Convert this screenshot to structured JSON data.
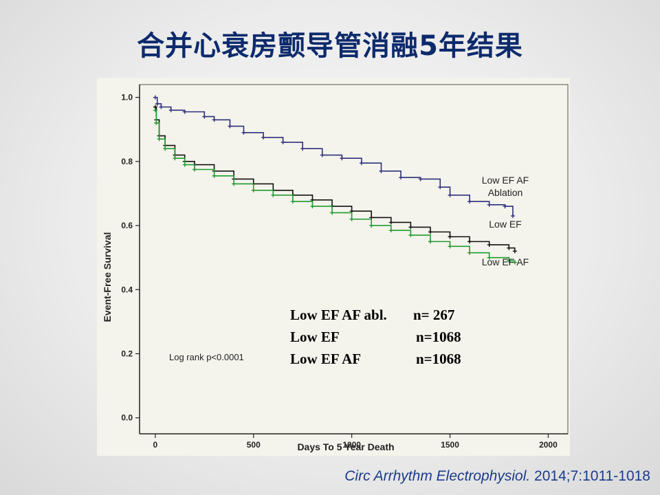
{
  "slide": {
    "title": "合并心衰房颤导管消融5年结果",
    "citation_journal": "Circ Arrhythm Electrophysiol.",
    "citation_ref": " 2014;7:1011-1018"
  },
  "colors": {
    "title": "#0d2a6c",
    "ablation": "#2c2f7a",
    "low_ef": "#111111",
    "low_ef_af": "#1f9a2e"
  },
  "chart_data": {
    "type": "line",
    "xlabel": "Days To 5 Year Death",
    "ylabel": "Event-Free Survival",
    "xlim": [
      -80,
      2100
    ],
    "ylim": [
      -0.05,
      1.04
    ],
    "x_ticks": [
      0,
      500,
      1000,
      1500,
      2000
    ],
    "y_ticks": [
      0.0,
      0.2,
      0.4,
      0.6,
      0.8,
      1.0
    ],
    "x_tick_labels": [
      "0",
      "500",
      "1000",
      "1500",
      "2000"
    ],
    "y_tick_labels": [
      "0.0",
      "0.2",
      "0.4",
      "0.6",
      "0.8",
      "1.0"
    ],
    "annotation": "Log rank p<0.0001",
    "legend": [
      {
        "label": "Low EF AF abl.",
        "n": "n= 267"
      },
      {
        "label": "Low EF",
        "n": "n=1068"
      },
      {
        "label": "Low EF AF",
        "n": "n=1068"
      }
    ],
    "series": [
      {
        "name": "Low EF AF Ablation",
        "label_lines": [
          "Low EF AF",
          "Ablation"
        ],
        "color": "#2c2f7a",
        "x": [
          0,
          10,
          30,
          80,
          150,
          250,
          300,
          380,
          450,
          550,
          650,
          750,
          850,
          950,
          1050,
          1150,
          1250,
          1350,
          1450,
          1500,
          1600,
          1700,
          1780,
          1820
        ],
        "y": [
          1.0,
          0.98,
          0.97,
          0.96,
          0.955,
          0.94,
          0.93,
          0.91,
          0.89,
          0.875,
          0.86,
          0.84,
          0.82,
          0.81,
          0.795,
          0.77,
          0.75,
          0.745,
          0.72,
          0.695,
          0.675,
          0.665,
          0.66,
          0.63
        ]
      },
      {
        "name": "Low EF",
        "label_lines": [
          "Low EF"
        ],
        "color": "#111111",
        "x": [
          0,
          5,
          20,
          50,
          100,
          150,
          200,
          300,
          400,
          500,
          600,
          700,
          800,
          900,
          1000,
          1100,
          1200,
          1300,
          1400,
          1500,
          1600,
          1700,
          1800,
          1830
        ],
        "y": [
          0.97,
          0.93,
          0.88,
          0.85,
          0.82,
          0.8,
          0.79,
          0.77,
          0.745,
          0.73,
          0.71,
          0.695,
          0.68,
          0.66,
          0.645,
          0.625,
          0.61,
          0.595,
          0.58,
          0.565,
          0.55,
          0.54,
          0.53,
          0.52
        ]
      },
      {
        "name": "Low EF AF",
        "label_lines": [
          "Low EF AF"
        ],
        "color": "#1f9a2e",
        "x": [
          0,
          5,
          20,
          50,
          100,
          150,
          200,
          300,
          400,
          500,
          600,
          700,
          800,
          900,
          1000,
          1100,
          1200,
          1300,
          1400,
          1500,
          1600,
          1700,
          1800,
          1830
        ],
        "y": [
          0.96,
          0.92,
          0.87,
          0.84,
          0.81,
          0.79,
          0.775,
          0.755,
          0.73,
          0.71,
          0.695,
          0.675,
          0.66,
          0.64,
          0.62,
          0.6,
          0.585,
          0.57,
          0.55,
          0.535,
          0.515,
          0.5,
          0.49,
          0.485
        ]
      }
    ]
  }
}
